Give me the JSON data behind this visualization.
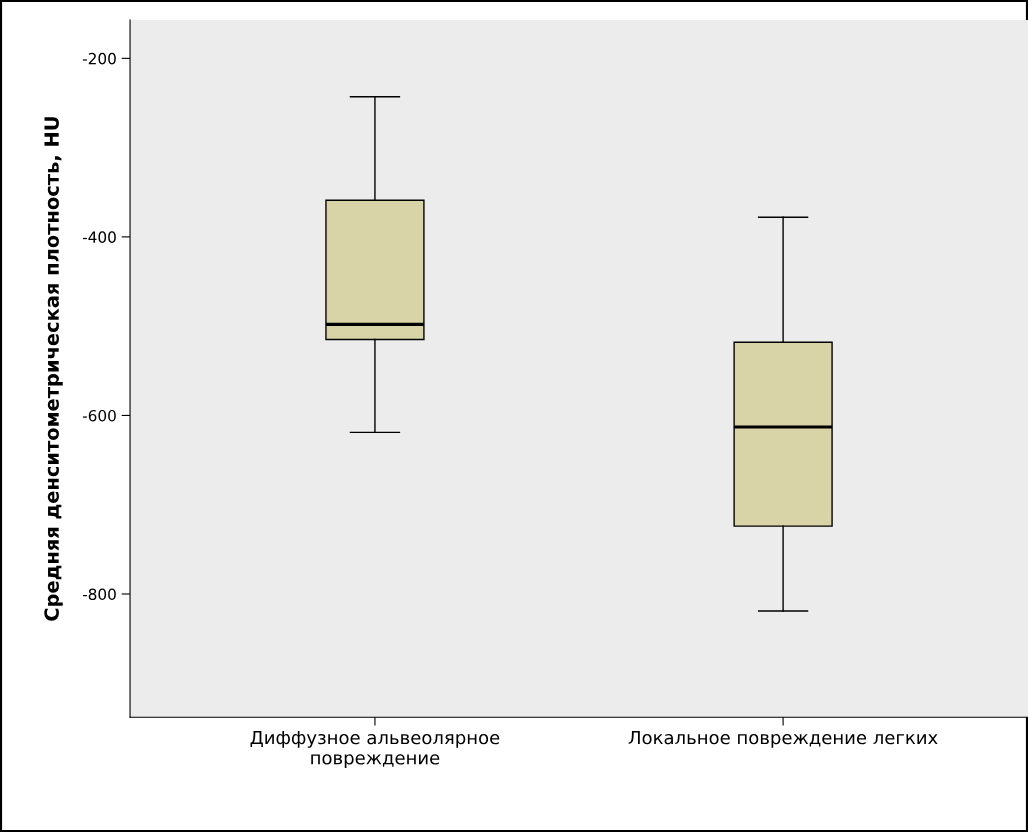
{
  "chart_data": {
    "type": "box",
    "ylabel": "Средняя денситометрическая плотность, HU",
    "categories": [
      "Диффузное альвеолярное\nповреждение",
      "Локальное повреждение легких"
    ],
    "boxes": [
      {
        "low": -619,
        "q1": -515,
        "median": -498,
        "q3": -359,
        "high": -243
      },
      {
        "low": -819,
        "q1": -724,
        "median": -613,
        "q3": -518,
        "high": -378
      }
    ],
    "color": "#d9d4a7",
    "ylim": [
      -938,
      -157
    ],
    "yticks": [
      -200,
      -400,
      -600,
      -800
    ],
    "grid": false
  }
}
